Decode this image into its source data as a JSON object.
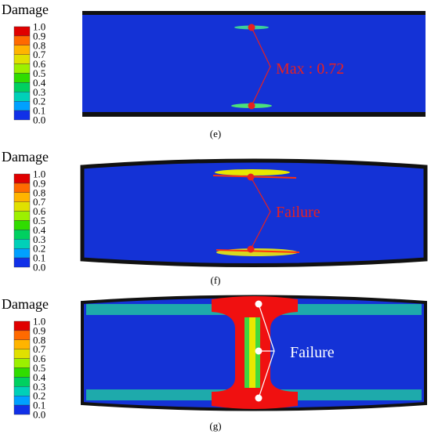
{
  "panels": [
    {
      "legend_title": "Damage",
      "legend_labels": [
        "1.0",
        "0.9",
        "0.8",
        "0.7",
        "0.6",
        "0.5",
        "0.4",
        "0.3",
        "0.2",
        "0.1",
        "0.0"
      ],
      "annotation": "Max : 0.72",
      "caption": "(e)"
    },
    {
      "legend_title": "Damage",
      "legend_labels": [
        "1.0",
        "0.9",
        "0.8",
        "0.7",
        "0.6",
        "0.5",
        "0.4",
        "0.3",
        "0.2",
        "0.1",
        "0.0"
      ],
      "annotation": "Failure",
      "caption": "(f)"
    },
    {
      "legend_title": "Damage",
      "legend_labels": [
        "1.0",
        "0.9",
        "0.8",
        "0.7",
        "0.6",
        "0.5",
        "0.4",
        "0.3",
        "0.2",
        "0.1",
        "0.0"
      ],
      "annotation": "Failure",
      "caption": "(g)"
    }
  ]
}
